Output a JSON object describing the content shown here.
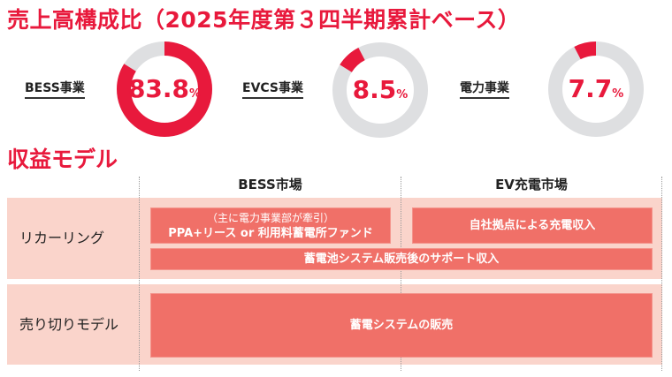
{
  "header": {
    "title": "売上高構成比（2025年度第３四半期累計ベース）"
  },
  "segments": [
    {
      "label": "BESS事業",
      "value": "83.8",
      "unit": "%"
    },
    {
      "label": "EVCS事業",
      "value": "8.5",
      "unit": "%"
    },
    {
      "label": "電力事業",
      "value": "7.7",
      "unit": "%"
    }
  ],
  "colors": {
    "accent": "#E8193C",
    "track": "#DEDFE1",
    "band": "#FAD4CB",
    "box": "#F07068"
  },
  "revenue_model": {
    "title": "収益モデル",
    "columns": [
      "BESS市場",
      "EV充電市場"
    ],
    "rows": [
      {
        "label": "リカーリング",
        "boxes": {
          "bess_sub": "（主に電力事業部が牽引）",
          "bess_main": "PPA+リース or 利用料蓄電所ファンド",
          "ev": "自社拠点による充電収入",
          "span": "蓄電池システム販売後のサポート収入"
        }
      },
      {
        "label": "売り切りモデル",
        "boxes": {
          "span": "蓄電システムの販売"
        }
      }
    ]
  },
  "chart_data": {
    "type": "pie",
    "title": "売上高構成比（2025年度第３四半期累計ベース）",
    "categories": [
      "BESS事業",
      "EVCS事業",
      "電力事業"
    ],
    "values": [
      83.8,
      8.5,
      7.7
    ],
    "unit": "%",
    "style": "three donuts, each highlighting one share of the same pie, starting at 12 o'clock clockwise in order BESS, EVCS, 電力"
  }
}
